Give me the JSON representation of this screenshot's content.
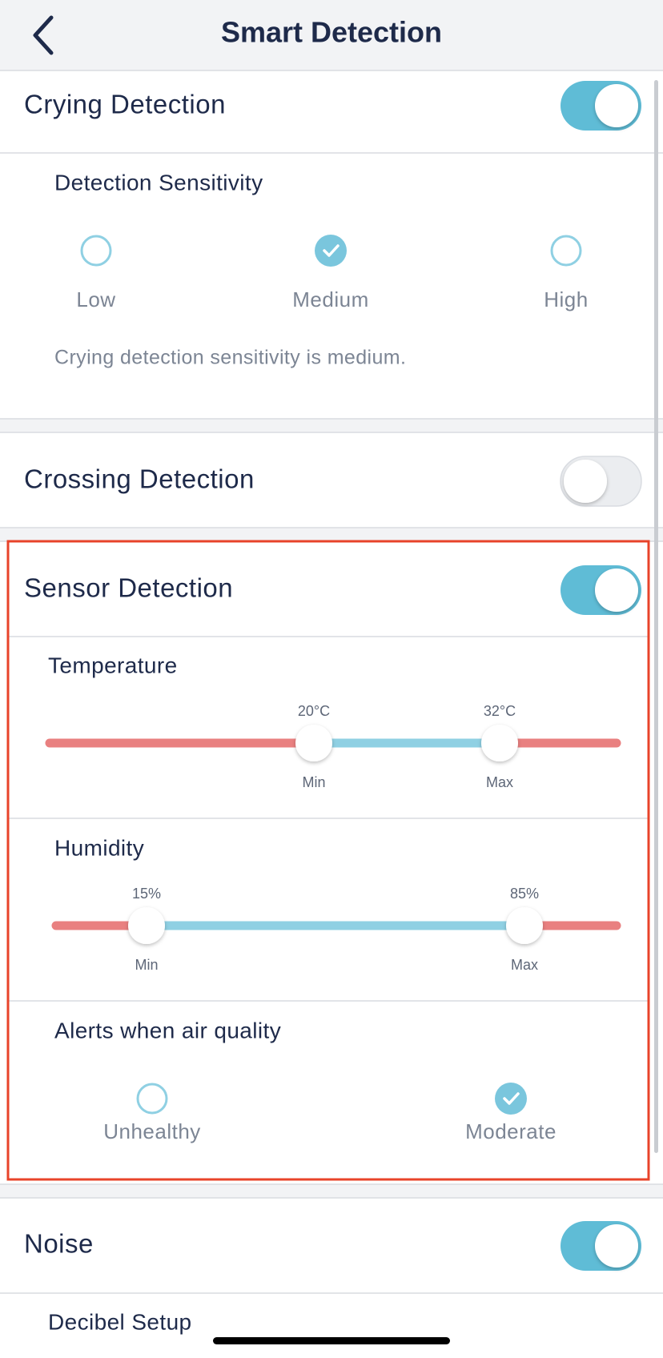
{
  "header": {
    "title": "Smart Detection"
  },
  "crying": {
    "title": "Crying Detection",
    "enabled": true,
    "sensitivity_label": "Detection Sensitivity",
    "options": [
      {
        "label": "Low",
        "selected": false
      },
      {
        "label": "Medium",
        "selected": true
      },
      {
        "label": "High",
        "selected": false
      }
    ],
    "note": "Crying detection sensitivity is medium."
  },
  "crossing": {
    "title": "Crossing Detection",
    "enabled": false
  },
  "sensor": {
    "title": "Sensor Detection",
    "enabled": true,
    "temperature": {
      "label": "Temperature",
      "min_value": "20°C",
      "max_value": "32°C",
      "min_caption": "Min",
      "max_caption": "Max"
    },
    "humidity": {
      "label": "Humidity",
      "min_value": "15%",
      "max_value": "85%",
      "min_caption": "Min",
      "max_caption": "Max"
    },
    "air_quality": {
      "label": "Alerts when air quality",
      "options": [
        {
          "label": "Unhealthy",
          "selected": false
        },
        {
          "label": "Moderate",
          "selected": true
        }
      ]
    }
  },
  "noise": {
    "title": "Noise",
    "enabled": true,
    "decibel_label": "Decibel Setup"
  }
}
